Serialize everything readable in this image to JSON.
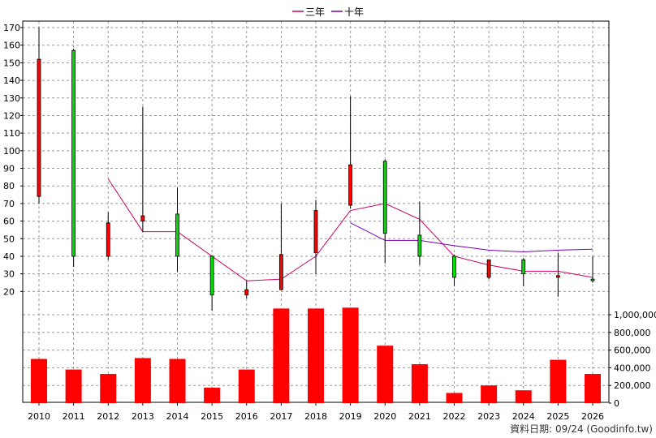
{
  "chart_data": {
    "type": "candlestick+bar",
    "legend": [
      {
        "name": "三年",
        "color": "#cc0066"
      },
      {
        "name": "十年",
        "color": "#7700bb"
      }
    ],
    "legend_position": "top-center",
    "categories": [
      "2010",
      "2011",
      "2012",
      "2013",
      "2014",
      "2015",
      "2016",
      "2017",
      "2018",
      "2019",
      "2020",
      "2021",
      "2022",
      "2023",
      "2024",
      "2025",
      "2026"
    ],
    "price_axis": {
      "min": 10,
      "max": 170,
      "ticks": [
        20,
        30,
        40,
        50,
        60,
        70,
        80,
        90,
        100,
        110,
        120,
        130,
        140,
        150,
        160,
        170
      ],
      "grid": true
    },
    "volume_axis": {
      "min": 0,
      "max": 1100000,
      "ticks": [
        0,
        200000,
        400000,
        600000,
        800000,
        1000000
      ],
      "tick_labels": [
        "0",
        "200,000",
        "400,000",
        "600,000",
        "800,000",
        "1,000,000"
      ]
    },
    "candles": [
      {
        "year": "2010",
        "open": 152,
        "close": 74,
        "high": 170,
        "low": 70
      },
      {
        "year": "2011",
        "open": 40,
        "close": 157,
        "high": 158,
        "low": 34
      },
      {
        "year": "2012",
        "open": 59,
        "close": 40,
        "high": 65,
        "low": 38
      },
      {
        "year": "2013",
        "open": 63,
        "close": 60,
        "high": 125,
        "low": 54
      },
      {
        "year": "2014",
        "open": 40,
        "close": 64,
        "high": 79,
        "low": 31
      },
      {
        "year": "2015",
        "open": 18,
        "close": 40,
        "high": 40,
        "low": 9
      },
      {
        "year": "2016",
        "open": 21,
        "close": 18,
        "high": 26,
        "low": 16
      },
      {
        "year": "2017",
        "open": 41,
        "close": 21,
        "high": 70,
        "low": 21
      },
      {
        "year": "2018",
        "open": 66,
        "close": 42,
        "high": 72,
        "low": 30
      },
      {
        "year": "2019",
        "open": 92,
        "close": 69,
        "high": 131,
        "low": 67
      },
      {
        "year": "2020",
        "open": 53,
        "close": 94,
        "high": 95,
        "low": 36
      },
      {
        "year": "2021",
        "open": 40,
        "close": 52,
        "high": 71,
        "low": 35
      },
      {
        "year": "2022",
        "open": 28,
        "close": 40,
        "high": 41,
        "low": 23
      },
      {
        "year": "2023",
        "open": 38,
        "close": 28,
        "high": 38,
        "low": 27
      },
      {
        "year": "2024",
        "open": 30,
        "close": 38,
        "high": 39,
        "low": 23
      },
      {
        "year": "2025",
        "open": 29,
        "close": 28,
        "high": 42,
        "low": 17
      },
      {
        "year": "2026",
        "open": 27,
        "close": 27,
        "high": 40,
        "low": 25
      }
    ],
    "series": [
      {
        "name": "三年",
        "color": "#cc0066",
        "points": [
          [
            "2012",
            84
          ],
          [
            "2013",
            54
          ],
          [
            "2014",
            54
          ],
          [
            "2015",
            40
          ],
          [
            "2016",
            26
          ],
          [
            "2017",
            27
          ],
          [
            "2018",
            40
          ],
          [
            "2019",
            66
          ],
          [
            "2020",
            70
          ],
          [
            "2021",
            61
          ],
          [
            "2022",
            40
          ],
          [
            "2023",
            35
          ],
          [
            "2024",
            31.5
          ],
          [
            "2025",
            31.5
          ],
          [
            "2026",
            28
          ]
        ]
      },
      {
        "name": "十年",
        "color": "#7700bb",
        "points": [
          [
            "2019",
            59
          ],
          [
            "2020",
            49
          ],
          [
            "2021",
            49
          ],
          [
            "2022",
            46
          ],
          [
            "2023",
            43.5
          ],
          [
            "2024",
            42.5
          ],
          [
            "2025",
            43.5
          ],
          [
            "2026",
            44
          ]
        ]
      }
    ],
    "volume": [
      500000,
      380000,
      330000,
      510000,
      500000,
      175000,
      380000,
      1070000,
      1070000,
      1080000,
      650000,
      440000,
      115000,
      200000,
      145000,
      490000,
      330000
    ],
    "credit": "資料日期: 09/24  (Goodinfo.tw)"
  }
}
